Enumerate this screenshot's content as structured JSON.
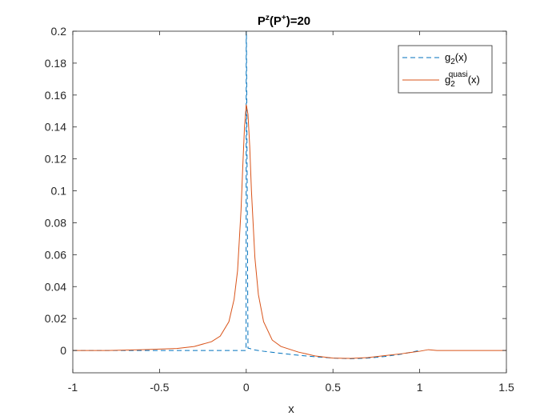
{
  "chart_data": {
    "type": "line",
    "title": {
      "base": "P",
      "sup1": "z",
      "mid": "(P",
      "sup2": "+",
      "end": ")=20"
    },
    "xlabel": "x",
    "ylabel": "",
    "xlim": [
      -1,
      1.5
    ],
    "ylim": [
      -0.014,
      0.2
    ],
    "xticks": [
      -1,
      -0.5,
      0,
      0.5,
      1,
      1.5
    ],
    "xtick_labels": [
      "-1",
      "-0.5",
      "0",
      "0.5",
      "1",
      "1.5"
    ],
    "yticks": [
      0,
      0.02,
      0.04,
      0.06,
      0.08,
      0.1,
      0.12,
      0.14,
      0.16,
      0.18,
      0.2
    ],
    "ytick_labels": [
      "0",
      "0.02",
      "0.04",
      "0.06",
      "0.08",
      "0.1",
      "0.12",
      "0.14",
      "0.16",
      "0.18",
      "0.2"
    ],
    "grid": false,
    "legend_position": "top-right",
    "series": [
      {
        "name": "g_2(x)",
        "legend": {
          "base": "g",
          "sub": "2",
          "sup": "",
          "tail": "(x)"
        },
        "color": "#0072BD",
        "style": "dashed",
        "x": [
          -1,
          -0.01,
          -0.001,
          0,
          0.001,
          0.01,
          0.05,
          0.1,
          0.2,
          0.3,
          0.4,
          0.5,
          0.6,
          0.7,
          0.8,
          0.9,
          1.0
        ],
        "y": [
          0,
          0,
          0,
          0.2,
          0.2,
          0.0015,
          0.0003,
          -0.0005,
          -0.0018,
          -0.003,
          -0.004,
          -0.0048,
          -0.0052,
          -0.0048,
          -0.0038,
          -0.0022,
          0
        ]
      },
      {
        "name": "g_2^quasi(x)",
        "legend": {
          "base": "g",
          "sub": "2",
          "sup": "quasi",
          "tail": "(x)"
        },
        "color": "#D95319",
        "style": "solid",
        "x": [
          -1,
          -0.8,
          -0.6,
          -0.4,
          -0.3,
          -0.2,
          -0.15,
          -0.1,
          -0.07,
          -0.05,
          -0.03,
          -0.02,
          -0.01,
          0,
          0.01,
          0.02,
          0.03,
          0.05,
          0.07,
          0.1,
          0.15,
          0.2,
          0.3,
          0.4,
          0.5,
          0.6,
          0.7,
          0.8,
          0.9,
          0.95,
          1.0,
          1.05,
          1.1,
          1.2,
          1.3,
          1.4,
          1.5
        ],
        "y": [
          0,
          0,
          0.0005,
          0.0012,
          0.0025,
          0.0055,
          0.009,
          0.018,
          0.032,
          0.05,
          0.088,
          0.115,
          0.14,
          0.154,
          0.148,
          0.128,
          0.1,
          0.058,
          0.035,
          0.018,
          0.0065,
          0.0025,
          -0.001,
          -0.0035,
          -0.0048,
          -0.005,
          -0.0045,
          -0.0032,
          -0.002,
          -0.0012,
          -0.0005,
          0.0005,
          0,
          0,
          0,
          0,
          0
        ]
      }
    ]
  }
}
